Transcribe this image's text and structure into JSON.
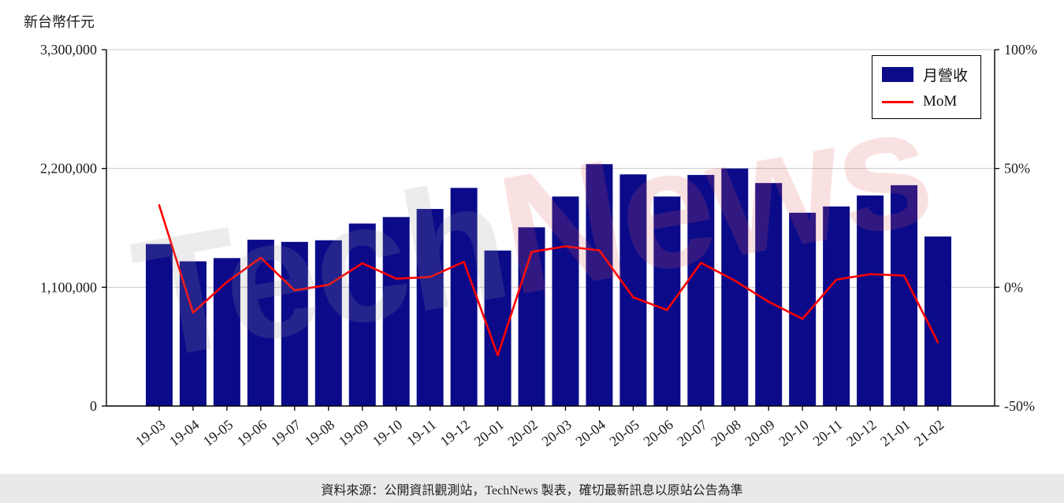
{
  "chart": {
    "unit_label": "新台幣仟元"
  },
  "legend": {
    "bar_label": "月營收",
    "line_label": "MoM"
  },
  "watermark": {
    "part1": "Tech",
    "part2": "News"
  },
  "footer": {
    "text": "資料來源：公開資訊觀測站，TechNews 製表，確切最新訊息以原站公告為準"
  },
  "colors": {
    "bar": "#0b0b8a",
    "line": "#ff0000",
    "grid": "#c9c9c9",
    "axis": "#000000",
    "footer_bg": "#e9e9e9"
  },
  "chart_data": {
    "type": "bar+line",
    "title": "",
    "categories": [
      "19-03",
      "19-04",
      "19-05",
      "19-06",
      "19-07",
      "19-08",
      "19-09",
      "19-10",
      "19-11",
      "19-12",
      "20-01",
      "20-02",
      "20-03",
      "20-04",
      "20-05",
      "20-06",
      "20-07",
      "20-08",
      "20-09",
      "20-10",
      "20-11",
      "20-12",
      "21-01",
      "21-02"
    ],
    "series": [
      {
        "name": "月營收",
        "type": "bar",
        "axis": "left",
        "values": [
          1500000,
          1340000,
          1370000,
          1540000,
          1520000,
          1535000,
          1690000,
          1750000,
          1825000,
          2020000,
          1440000,
          1655000,
          1940000,
          2240000,
          2145000,
          1940000,
          2140000,
          2200000,
          2065000,
          1790000,
          1848000,
          1950000,
          2045000,
          1570000
        ]
      },
      {
        "name": "MoM",
        "type": "line",
        "axis": "right",
        "values": [
          34.5,
          -10.7,
          2.2,
          12.4,
          -1.3,
          1.0,
          10.1,
          3.6,
          4.3,
          10.7,
          -28.7,
          14.9,
          17.2,
          15.5,
          -4.2,
          -9.6,
          10.3,
          2.8,
          -6.1,
          -13.3,
          3.2,
          5.5,
          4.9,
          -23.2
        ]
      }
    ],
    "left_axis": {
      "title": "新台幣仟元",
      "range": [
        0,
        3300000
      ],
      "ticks": [
        0,
        1100000,
        2200000,
        3300000
      ],
      "tick_labels": [
        "0",
        "1,100,000",
        "2,200,000",
        "3,300,000"
      ]
    },
    "right_axis": {
      "range": [
        -50,
        100
      ],
      "ticks": [
        -50,
        0,
        50,
        100
      ],
      "tick_labels": [
        "-50%",
        "0%",
        "50%",
        "100%"
      ]
    },
    "grid": "horizontal",
    "legend_position": "top-right"
  }
}
